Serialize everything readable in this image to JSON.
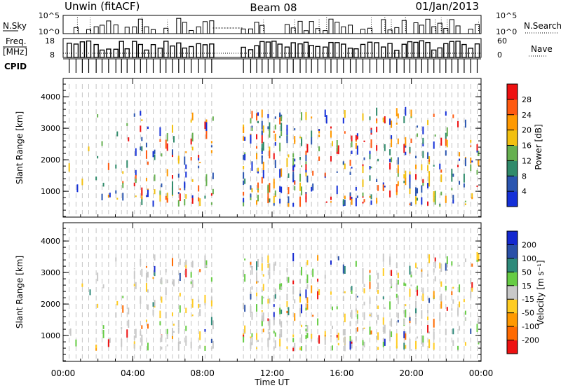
{
  "header": {
    "station": "Unwin (fitACF)",
    "beam": "Beam 08",
    "date": "01/Jan/2013"
  },
  "info_panels": {
    "nsky": {
      "label": "N.Sky",
      "tick_top": "10^5",
      "tick_bottom": "10^0"
    },
    "nsearch": {
      "label": "N.Search",
      "tick_top": "10^5",
      "tick_bottom": "10^0"
    },
    "freq": {
      "label_line1": "Freq.",
      "label_line2": "[MHz]",
      "tick_top": "18",
      "tick_bottom": "8"
    },
    "nave": {
      "label": "Nave",
      "tick_top": "60",
      "tick_bottom": "0"
    },
    "cpid": {
      "label": "CPID"
    }
  },
  "chart_data": [
    {
      "type": "heatmap",
      "title": "",
      "ylabel": "Slant Range [km]",
      "ylim": [
        180,
        4580
      ],
      "yticks": [
        "1000",
        "2000",
        "3000",
        "4000"
      ],
      "colorbar": {
        "label": "Power [dB]",
        "ticks": [
          "4",
          "8",
          "12",
          "16",
          "20",
          "24",
          "28"
        ],
        "colors": [
          "#1430d8",
          "#2a55b0",
          "#2f8a6a",
          "#66b050",
          "#f2c010",
          "#ff9900",
          "#ff5a10",
          "#ee1111"
        ]
      },
      "data_gaps_hours": [
        [
          8.6,
          10.3
        ]
      ]
    },
    {
      "type": "heatmap",
      "title": "",
      "ylabel": "Slant Range [km]",
      "ylim": [
        180,
        4580
      ],
      "yticks": [
        "1000",
        "2000",
        "3000",
        "4000"
      ],
      "colorbar": {
        "label": "Velocity [m s⁻¹]",
        "ticks": [
          "-200",
          "-100",
          "-50",
          "-15",
          "15",
          "50",
          "100",
          "200"
        ],
        "colors": [
          "#ee1111",
          "#ff6a00",
          "#ff9900",
          "#ffcc22",
          "#c8c8c8",
          "#66cc44",
          "#2e8a7a",
          "#2a50a8",
          "#1428d0"
        ]
      },
      "data_gaps_hours": [
        [
          8.6,
          10.3
        ]
      ]
    }
  ],
  "time_axis": {
    "label": "Time UT",
    "range_hours": [
      0,
      24
    ],
    "ticks": [
      "00:00",
      "04:00",
      "08:00",
      "12:00",
      "16:00",
      "20:00",
      "00:00"
    ]
  }
}
